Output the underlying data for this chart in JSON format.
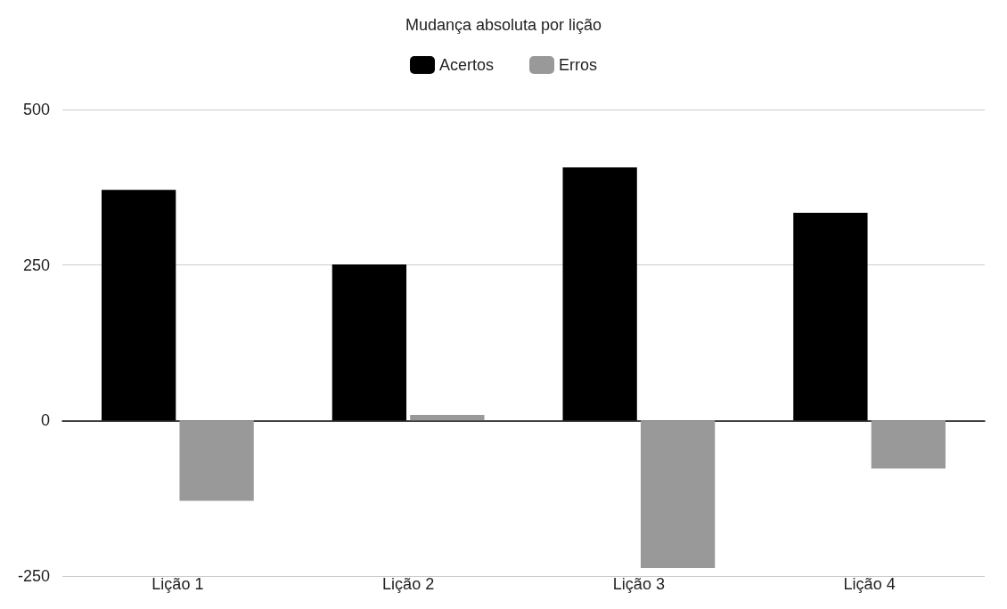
{
  "chart_data": {
    "type": "bar",
    "title": "Mudança absoluta por lição",
    "categories": [
      "Lição 1",
      "Lição 2",
      "Lição 3",
      "Lição 4"
    ],
    "series": [
      {
        "name": "Acertos",
        "color": "#000000",
        "values": [
          371,
          251,
          407,
          334
        ]
      },
      {
        "name": "Erros",
        "color": "#999999",
        "values": [
          -129,
          9,
          -237,
          -77
        ]
      }
    ],
    "ylim": [
      -250,
      500
    ],
    "yticks": [
      -250,
      0,
      250,
      500
    ],
    "grid": "y",
    "legend": "top"
  }
}
